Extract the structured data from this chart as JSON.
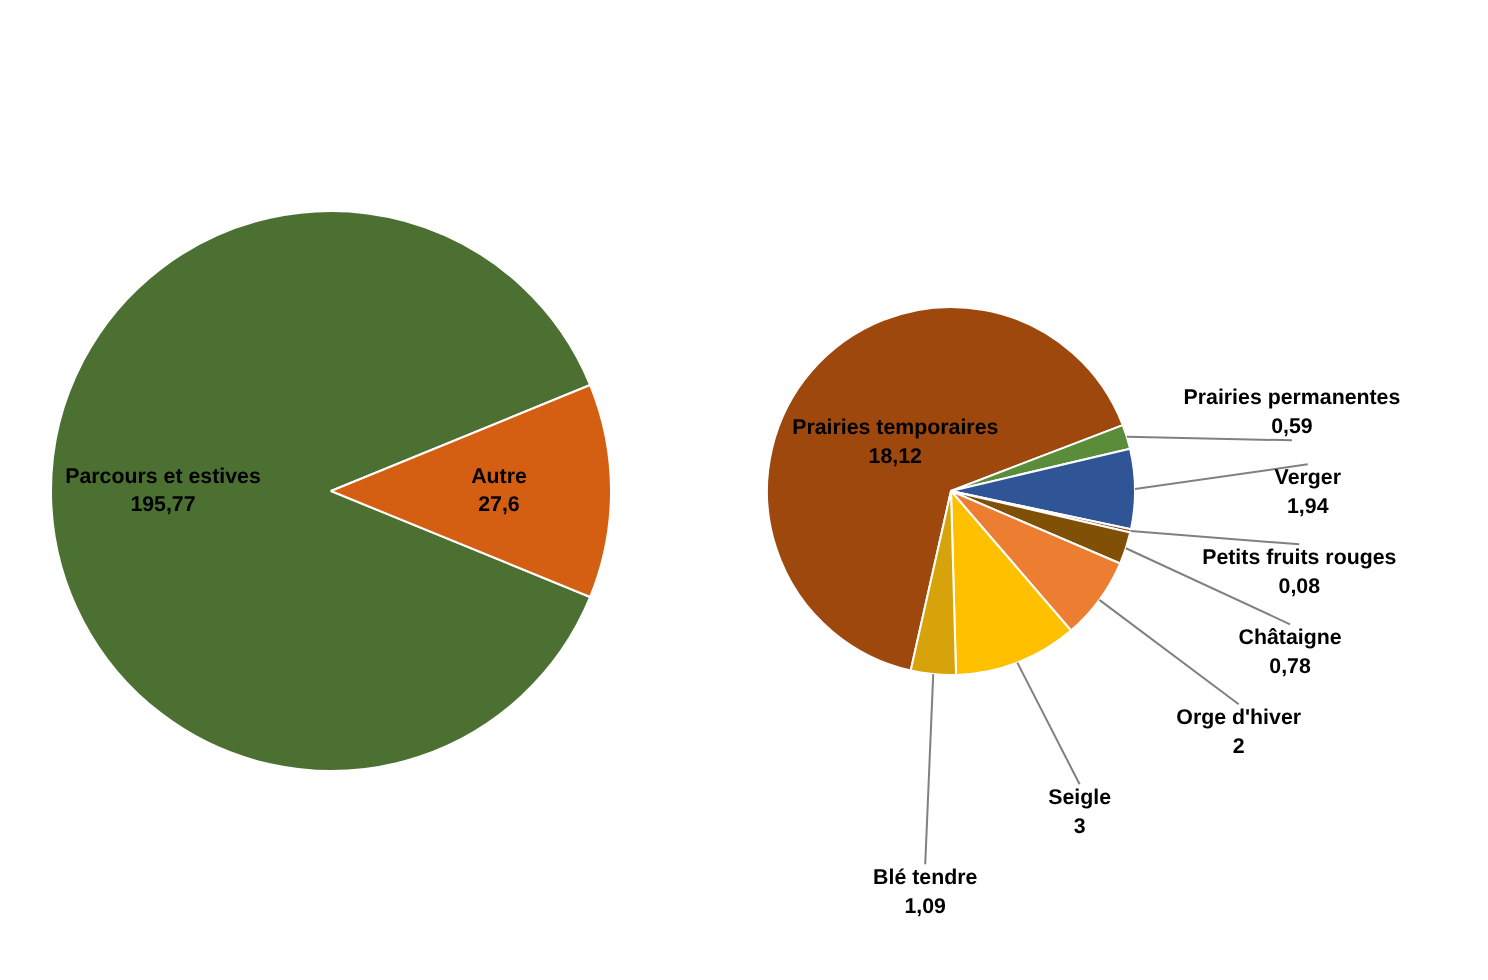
{
  "chart_data": [
    {
      "type": "pie",
      "categories": [
        "Parcours et estives",
        "Autre"
      ],
      "values": [
        195.77,
        27.6
      ],
      "colors": [
        "#4b7032",
        "#d45e12"
      ],
      "value_labels": [
        "195,77",
        "27,6"
      ]
    },
    {
      "type": "pie",
      "categories": [
        "Prairies temporaires",
        "Prairies permanentes",
        "Verger",
        "Petits fruits rouges",
        "Châtaigne",
        "Orge d'hiver",
        "Seigle",
        "Blé tendre"
      ],
      "values": [
        18.12,
        0.59,
        1.94,
        0.08,
        0.78,
        2,
        3,
        1.09
      ],
      "colors": [
        "#9e480e",
        "#5b8c3a",
        "#2f5597",
        "#843c0c",
        "#7f5006",
        "#ed7d31",
        "#ffc000",
        "#d6a40a"
      ],
      "value_labels": [
        "18,12",
        "0,59",
        "1,94",
        "0,08",
        "0,78",
        "2",
        "3",
        "1,09"
      ]
    }
  ]
}
